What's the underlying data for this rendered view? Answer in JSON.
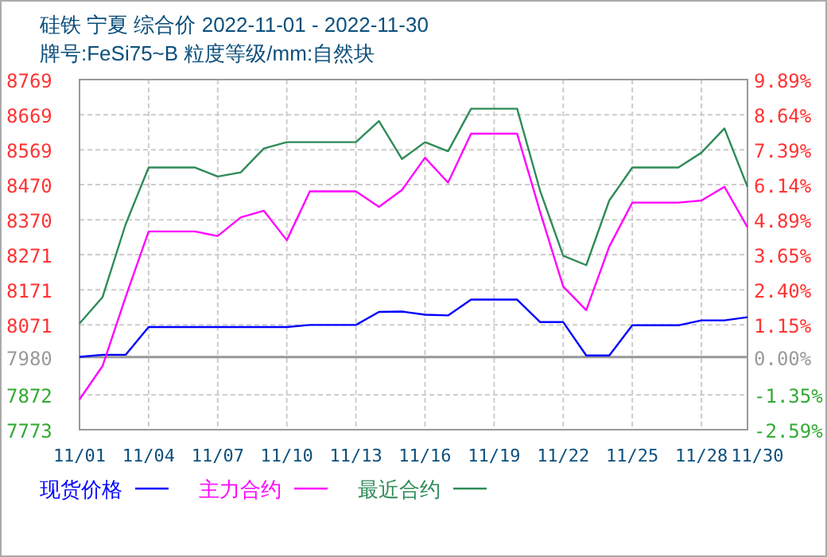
{
  "chart_data": {
    "type": "line",
    "title": "硅铁 宁夏 综合价 2022-11-01 - 2022-11-30",
    "subtitle": "牌号:FeSi75~B 粒度等级/mm:自然块",
    "x": [
      "2022-11-01",
      "2022-11-02",
      "2022-11-03",
      "2022-11-04",
      "2022-11-05",
      "2022-11-06",
      "2022-11-07",
      "2022-11-08",
      "2022-11-09",
      "2022-11-10",
      "2022-11-11",
      "2022-11-12",
      "2022-11-13",
      "2022-11-14",
      "2022-11-15",
      "2022-11-16",
      "2022-11-17",
      "2022-11-18",
      "2022-11-19",
      "2022-11-20",
      "2022-11-21",
      "2022-11-22",
      "2022-11-23",
      "2022-11-24",
      "2022-11-25",
      "2022-11-26",
      "2022-11-27",
      "2022-11-28",
      "2022-11-29",
      "2022-11-30"
    ],
    "series": [
      {
        "name": "现货价格",
        "color": "#0000ff",
        "values": [
          7980,
          7986,
          7986,
          8065,
          8065,
          8065,
          8065,
          8065,
          8065,
          8065,
          8071,
          8071,
          8071,
          8108,
          8109,
          8100,
          8098,
          8143,
          8143,
          8143,
          8079,
          8079,
          7984,
          7984,
          8070,
          8070,
          8070,
          8084,
          8084,
          8093
        ]
      },
      {
        "name": "主力合约",
        "color": "#ff00ff",
        "values": [
          7859,
          7954,
          8150,
          8337,
          8337,
          8337,
          8324,
          8377,
          8396,
          8312,
          8451,
          8451,
          8451,
          8407,
          8455,
          8547,
          8476,
          8615,
          8615,
          8615,
          8392,
          8180,
          8113,
          8294,
          8419,
          8419,
          8419,
          8425,
          8464,
          8349
        ]
      },
      {
        "name": "最近合约",
        "color": "#2e8b57",
        "values": [
          8075,
          8150,
          8357,
          8519,
          8519,
          8519,
          8493,
          8505,
          8573,
          8591,
          8591,
          8591,
          8591,
          8651,
          8543,
          8591,
          8565,
          8686,
          8686,
          8686,
          8452,
          8268,
          8241,
          8425,
          8519,
          8519,
          8519,
          8561,
          8630,
          8464
        ]
      }
    ],
    "xlim": [
      "2022-11-01",
      "2022-11-30"
    ],
    "xticks": [
      {
        "value": "2022-11-01",
        "label": "11/01"
      },
      {
        "value": "2022-11-04",
        "label": "11/04"
      },
      {
        "value": "2022-11-07",
        "label": "11/07"
      },
      {
        "value": "2022-11-10",
        "label": "11/10"
      },
      {
        "value": "2022-11-13",
        "label": "11/13"
      },
      {
        "value": "2022-11-16",
        "label": "11/16"
      },
      {
        "value": "2022-11-19",
        "label": "11/19"
      },
      {
        "value": "2022-11-22",
        "label": "11/22"
      },
      {
        "value": "2022-11-25",
        "label": "11/25"
      },
      {
        "value": "2022-11-28",
        "label": "11/28"
      },
      {
        "value": "2022-11-30",
        "label": "11/30"
      }
    ],
    "ylim": [
      7773,
      8769
    ],
    "yticks": [
      7773,
      7872,
      7980,
      8071,
      8171,
      8271,
      8370,
      8470,
      8569,
      8669,
      8769
    ],
    "y2lim": [
      -2.59,
      9.89
    ],
    "y2ticks": [
      {
        "value": -2.59,
        "label": "-2.59%"
      },
      {
        "value": -1.35,
        "label": "-1.35%"
      },
      {
        "value": 0,
        "label": "0.00%"
      },
      {
        "value": 1.15,
        "label": "1.15%"
      },
      {
        "value": 2.4,
        "label": "2.40%"
      },
      {
        "value": 3.65,
        "label": "3.65%"
      },
      {
        "value": 4.89,
        "label": "4.89%"
      },
      {
        "value": 6.14,
        "label": "6.14%"
      },
      {
        "value": 7.39,
        "label": "7.39%"
      },
      {
        "value": 8.64,
        "label": "8.64%"
      },
      {
        "value": 9.89,
        "label": "9.89%"
      }
    ],
    "ref_lines": [
      {
        "axis": "y2",
        "value": 0,
        "color": "#999999"
      }
    ],
    "grid": true,
    "legend": "bottom"
  }
}
